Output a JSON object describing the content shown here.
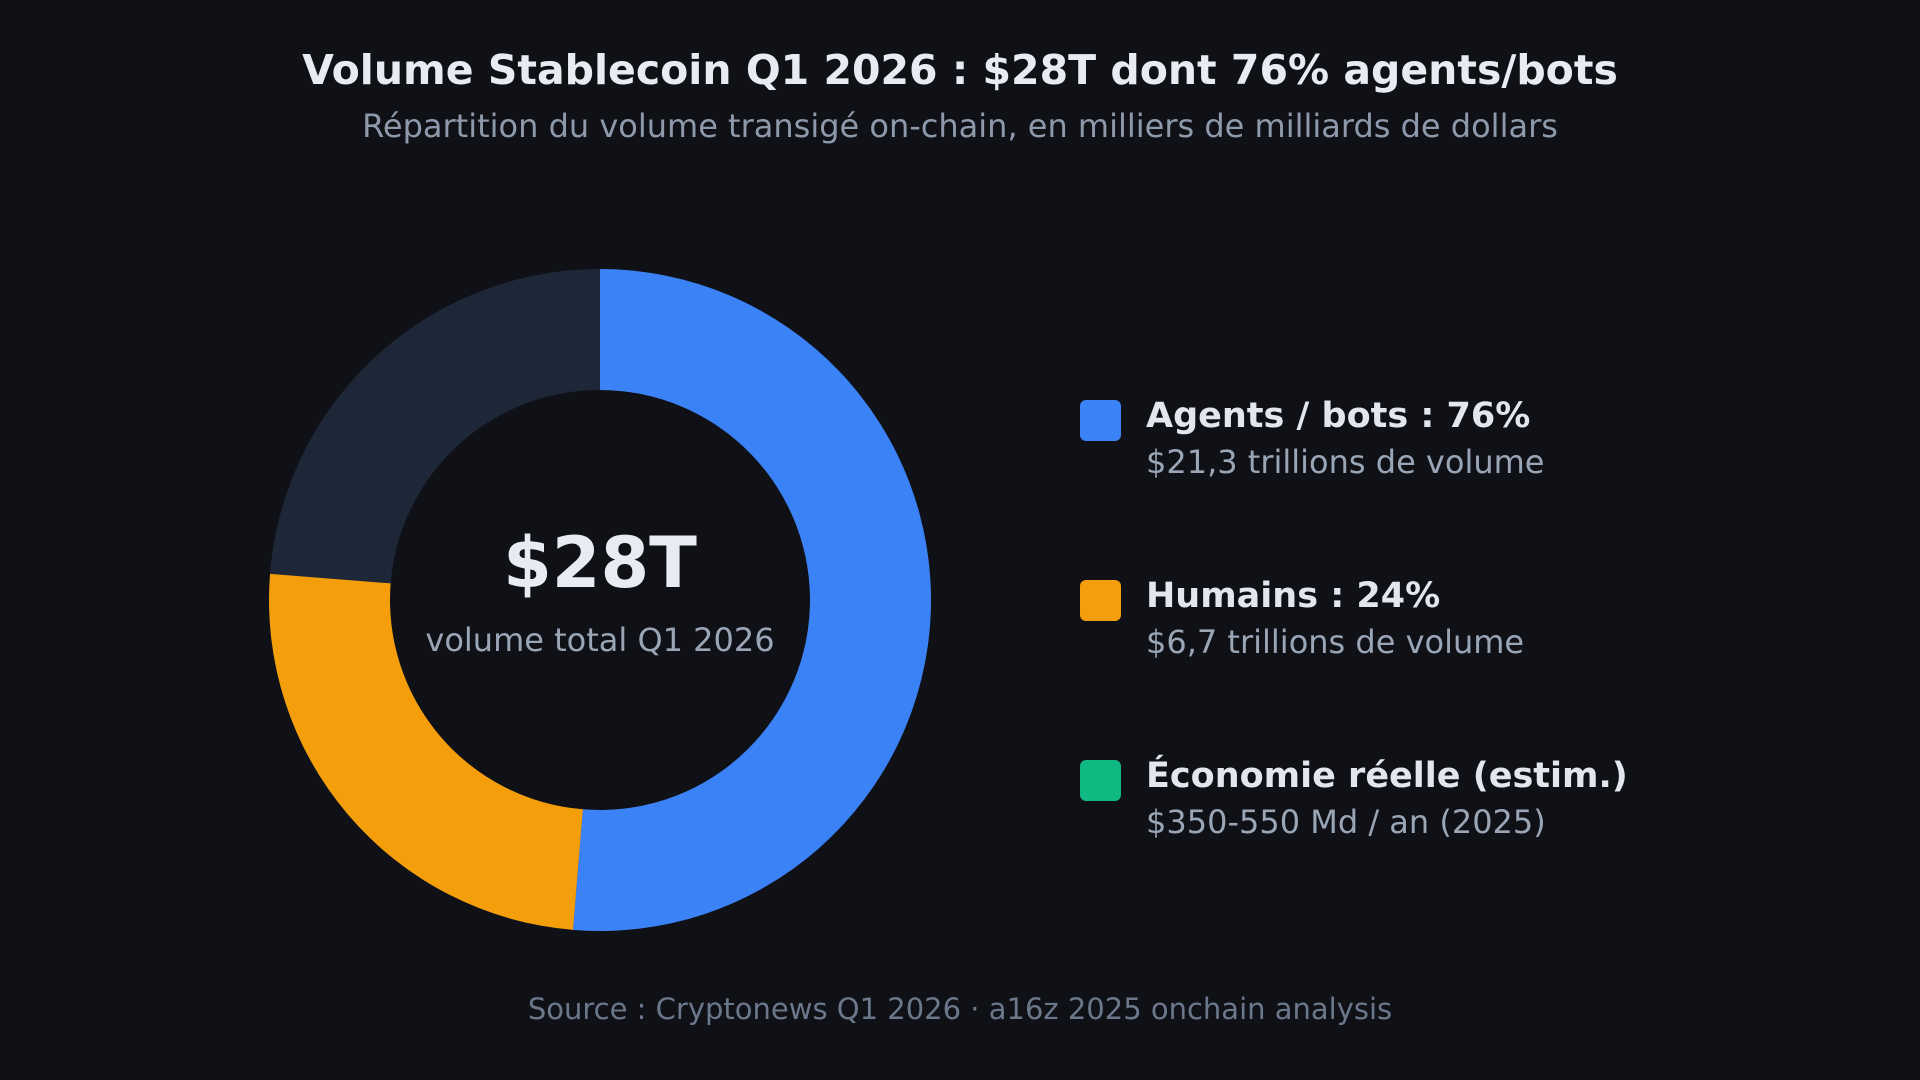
{
  "title": "Volume Stablecoin Q1 2026 : $28T dont 76% agents/bots",
  "subtitle": "Répartition du volume transigé on-chain, en milliers de milliards de dollars",
  "center": {
    "value": "$28T",
    "label": "volume total Q1 2026"
  },
  "source": "Source : Cryptonews Q1 2026 · a16z 2025 onchain analysis",
  "legend": [
    {
      "label": "Agents / bots : 76%",
      "detail": "$21,3 trillions de volume",
      "color": "#3b82f6"
    },
    {
      "label": "Humains : 24%",
      "detail": "$6,7 trillions de volume",
      "color": "#f59e0b"
    },
    {
      "label": "Économie réelle (estim.)",
      "detail": "$350-550 Md / an (2025)",
      "color": "#10b981"
    }
  ],
  "chart_data": {
    "type": "pie",
    "title": "Volume Stablecoin Q1 2026 : $28T dont 76% agents/bots",
    "total": 28,
    "slices": [
      {
        "name": "Agents / bots",
        "percent": 76,
        "value": 21.3,
        "color": "#3b82f6"
      },
      {
        "name": "Humains",
        "percent": 24,
        "value": 6.7,
        "color": "#f59e0b"
      }
    ],
    "remainder_color": "#1e2738"
  }
}
